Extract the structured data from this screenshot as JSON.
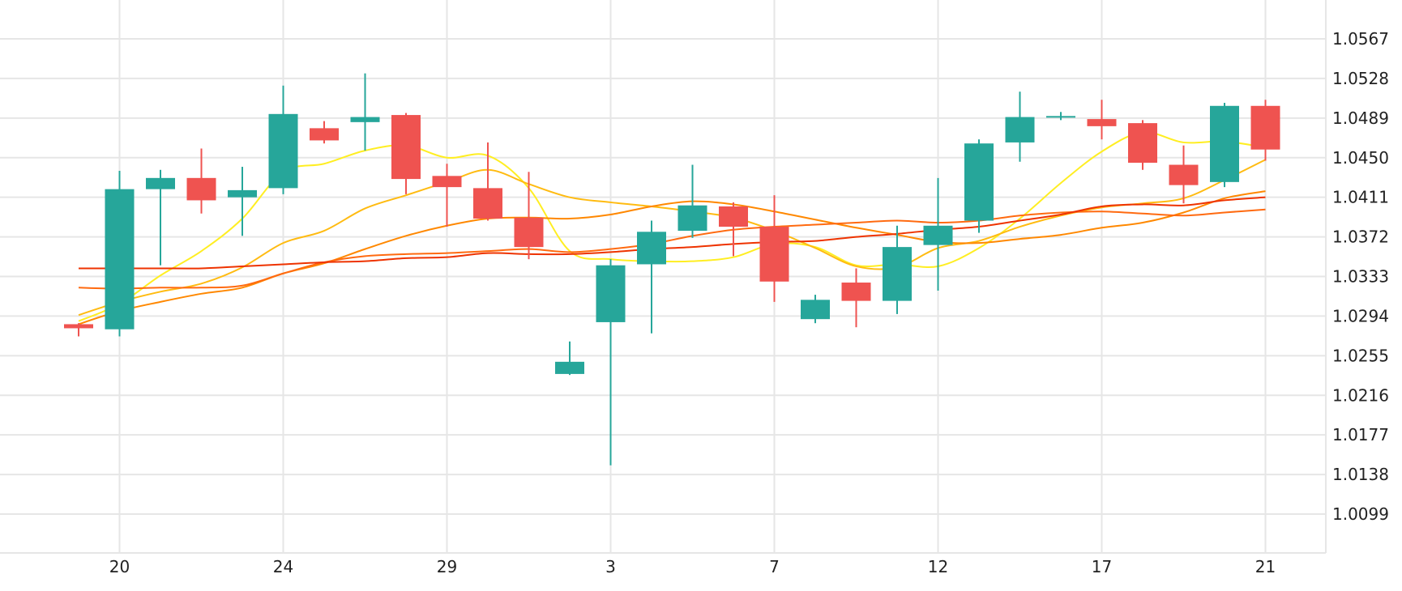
{
  "chart_data": {
    "type": "candlestick",
    "x_ticks": [
      "20",
      "24",
      "29",
      "3",
      "7",
      "12",
      "17",
      "21"
    ],
    "x_tick_index": [
      1,
      5,
      9,
      13,
      17,
      21,
      25,
      29
    ],
    "y_ticks": [
      1.0567,
      1.0528,
      1.0489,
      1.045,
      1.0411,
      1.0372,
      1.0333,
      1.0294,
      1.0255,
      1.0216,
      1.0177,
      1.0138,
      1.0099
    ],
    "y_tick_labels": [
      "1.0567",
      "1.0528",
      "1.0489",
      "1.0450",
      "1.0411",
      "1.0372",
      "1.0333",
      "1.0294",
      "1.0255",
      "1.0216",
      "1.0177",
      "1.0138",
      "1.0099"
    ],
    "ylim": [
      1.006,
      1.0598
    ],
    "up_color": "#26a69a",
    "down_color": "#ef5350",
    "candles": [
      {
        "o": 1.0286,
        "h": 1.0287,
        "l": 1.0274,
        "c": 1.0282
      },
      {
        "o": 1.0281,
        "h": 1.0437,
        "l": 1.0274,
        "c": 1.0419
      },
      {
        "o": 1.0419,
        "h": 1.0438,
        "l": 1.0344,
        "c": 1.043
      },
      {
        "o": 1.043,
        "h": 1.0459,
        "l": 1.0395,
        "c": 1.0408
      },
      {
        "o": 1.0411,
        "h": 1.0441,
        "l": 1.0373,
        "c": 1.0418
      },
      {
        "o": 1.042,
        "h": 1.0521,
        "l": 1.0414,
        "c": 1.0493
      },
      {
        "o": 1.0479,
        "h": 1.0486,
        "l": 1.0464,
        "c": 1.0467
      },
      {
        "o": 1.0485,
        "h": 1.0533,
        "l": 1.0457,
        "c": 1.049
      },
      {
        "o": 1.0492,
        "h": 1.0494,
        "l": 1.0414,
        "c": 1.0429
      },
      {
        "o": 1.0432,
        "h": 1.0444,
        "l": 1.0382,
        "c": 1.0421
      },
      {
        "o": 1.042,
        "h": 1.0465,
        "l": 1.0388,
        "c": 1.039
      },
      {
        "o": 1.0391,
        "h": 1.0436,
        "l": 1.035,
        "c": 1.0362
      },
      {
        "o": 1.0237,
        "h": 1.0269,
        "l": 1.0236,
        "c": 1.0249
      },
      {
        "o": 1.0288,
        "h": 1.035,
        "l": 1.0147,
        "c": 1.0344
      },
      {
        "o": 1.0345,
        "h": 1.0388,
        "l": 1.0277,
        "c": 1.0377
      },
      {
        "o": 1.0378,
        "h": 1.0443,
        "l": 1.0371,
        "c": 1.0403
      },
      {
        "o": 1.0402,
        "h": 1.0406,
        "l": 1.0353,
        "c": 1.0382
      },
      {
        "o": 1.0382,
        "h": 1.0413,
        "l": 1.0308,
        "c": 1.0328
      },
      {
        "o": 1.0291,
        "h": 1.0315,
        "l": 1.0287,
        "c": 1.031
      },
      {
        "o": 1.0327,
        "h": 1.0341,
        "l": 1.0283,
        "c": 1.0309
      },
      {
        "o": 1.0309,
        "h": 1.0383,
        "l": 1.0296,
        "c": 1.0362
      },
      {
        "o": 1.0364,
        "h": 1.043,
        "l": 1.0319,
        "c": 1.0383
      },
      {
        "o": 1.0388,
        "h": 1.0468,
        "l": 1.0376,
        "c": 1.0464
      },
      {
        "o": 1.0465,
        "h": 1.0515,
        "l": 1.0446,
        "c": 1.049
      },
      {
        "o": 1.049,
        "h": 1.0495,
        "l": 1.0487,
        "c": 1.0491
      },
      {
        "o": 1.0488,
        "h": 1.0507,
        "l": 1.0468,
        "c": 1.0481
      },
      {
        "o": 1.0484,
        "h": 1.0487,
        "l": 1.0438,
        "c": 1.0445
      },
      {
        "o": 1.0443,
        "h": 1.0462,
        "l": 1.0405,
        "c": 1.0423
      },
      {
        "o": 1.0426,
        "h": 1.0504,
        "l": 1.0421,
        "c": 1.0501
      },
      {
        "o": 1.0501,
        "h": 1.0507,
        "l": 1.0447,
        "c": 1.0458
      }
    ],
    "series": [
      {
        "color": "#ffee22",
        "values": [
          1.0289,
          1.0306,
          1.0334,
          1.0358,
          1.039,
          1.0436,
          1.0444,
          1.0457,
          1.0462,
          1.045,
          1.0452,
          1.042,
          1.0358,
          1.035,
          1.0348,
          1.0348,
          1.0352,
          1.0365,
          1.0362,
          1.0344,
          1.0345,
          1.0343,
          1.0361,
          1.039,
          1.0425,
          1.0456,
          1.0475,
          1.0465,
          1.0466,
          1.046
        ]
      },
      {
        "color": "#ffbb11",
        "values": [
          1.0295,
          1.0308,
          1.0318,
          1.0326,
          1.0342,
          1.0366,
          1.0378,
          1.04,
          1.0413,
          1.0426,
          1.0438,
          1.0424,
          1.0411,
          1.0406,
          1.0402,
          1.0397,
          1.0391,
          1.0378,
          1.0361,
          1.0343,
          1.0342,
          1.0361,
          1.0368,
          1.0382,
          1.0393,
          1.0401,
          1.0405,
          1.041,
          1.0428,
          1.0448
        ]
      },
      {
        "color": "#ff8800",
        "values": [
          1.0286,
          1.0299,
          1.0308,
          1.0316,
          1.0322,
          1.0336,
          1.0346,
          1.036,
          1.0373,
          1.0383,
          1.039,
          1.0391,
          1.039,
          1.0394,
          1.0402,
          1.0407,
          1.0404,
          1.0397,
          1.0389,
          1.0381,
          1.0374,
          1.0367,
          1.0366,
          1.037,
          1.0374,
          1.0381,
          1.0386,
          1.0396,
          1.041,
          1.0417
        ]
      },
      {
        "color": "#ff6a10",
        "values": [
          1.0322,
          1.0321,
          1.0322,
          1.0322,
          1.0324,
          1.0336,
          1.0347,
          1.0353,
          1.0355,
          1.0356,
          1.0358,
          1.036,
          1.0357,
          1.036,
          1.0365,
          1.0373,
          1.0379,
          1.0382,
          1.0384,
          1.0386,
          1.0388,
          1.0386,
          1.0388,
          1.0393,
          1.0396,
          1.0397,
          1.0395,
          1.0393,
          1.0396,
          1.0399
        ]
      },
      {
        "color": "#ee3300",
        "values": [
          1.0341,
          1.0341,
          1.0341,
          1.0341,
          1.0343,
          1.0345,
          1.0347,
          1.0348,
          1.0351,
          1.0352,
          1.0356,
          1.0355,
          1.0355,
          1.0357,
          1.036,
          1.0362,
          1.0365,
          1.0367,
          1.0368,
          1.0372,
          1.0375,
          1.0379,
          1.0382,
          1.0388,
          1.0394,
          1.0402,
          1.0404,
          1.0403,
          1.0408,
          1.0411
        ]
      }
    ]
  }
}
